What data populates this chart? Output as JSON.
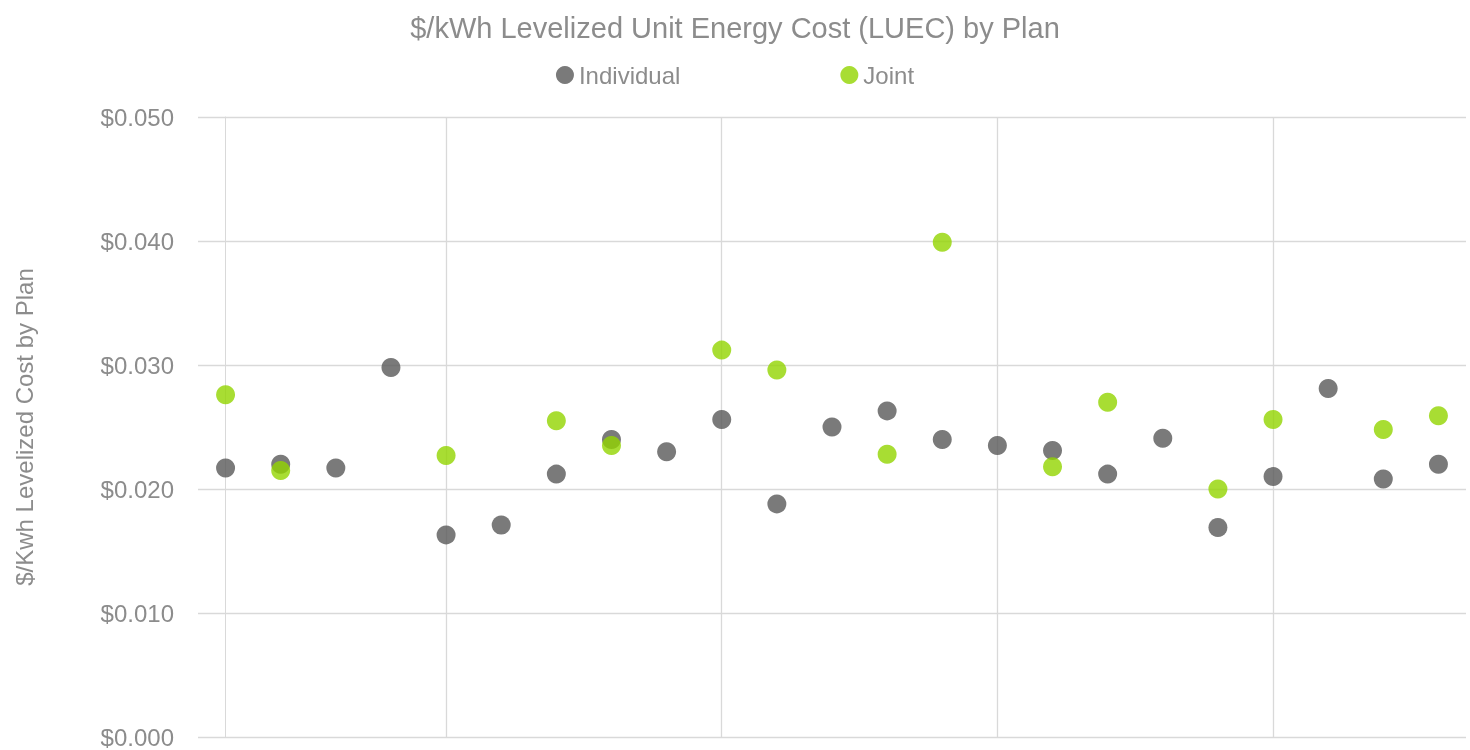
{
  "chart_data": {
    "type": "scatter",
    "title": "$/kWh Levelized Unit Energy Cost (LUEC) by Plan",
    "ylabel": "$/Kwh Levelized Cost by Plan",
    "categories": [
      null,
      null,
      null,
      null,
      null,
      null,
      null,
      null,
      null,
      null,
      null,
      null,
      null,
      null,
      null,
      null,
      null,
      null,
      null,
      null,
      null,
      null,
      null
    ],
    "series": [
      {
        "name": "Individual",
        "color": "#595959",
        "values": [
          0.0217,
          0.022,
          0.0217,
          0.0298,
          0.0163,
          0.0171,
          0.0212,
          0.024,
          0.023,
          0.0256,
          0.0188,
          0.025,
          0.0263,
          0.024,
          0.0235,
          0.0231,
          0.0212,
          0.0241,
          0.0169,
          0.021,
          0.0281,
          0.0208,
          0.022
        ]
      },
      {
        "name": "Joint",
        "color": "#92d400",
        "values": [
          0.0276,
          0.0215,
          null,
          null,
          0.0227,
          null,
          0.0255,
          0.0235,
          null,
          0.0312,
          0.0296,
          null,
          0.0228,
          0.0399,
          null,
          0.0218,
          0.027,
          null,
          0.02,
          0.0256,
          null,
          0.0248,
          0.0259
        ]
      }
    ],
    "ylim": [
      0,
      0.05
    ],
    "yticks": [
      {
        "value": 0,
        "label": "$0.000"
      },
      {
        "value": 0.01,
        "label": "$0.010"
      },
      {
        "value": 0.02,
        "label": "$0.020"
      },
      {
        "value": 0.03,
        "label": "$0.030"
      },
      {
        "value": 0.04,
        "label": "$0.040"
      },
      {
        "value": 0.05,
        "label": "$0.050"
      }
    ],
    "grid": true,
    "legend": "top",
    "marker": "circle"
  }
}
